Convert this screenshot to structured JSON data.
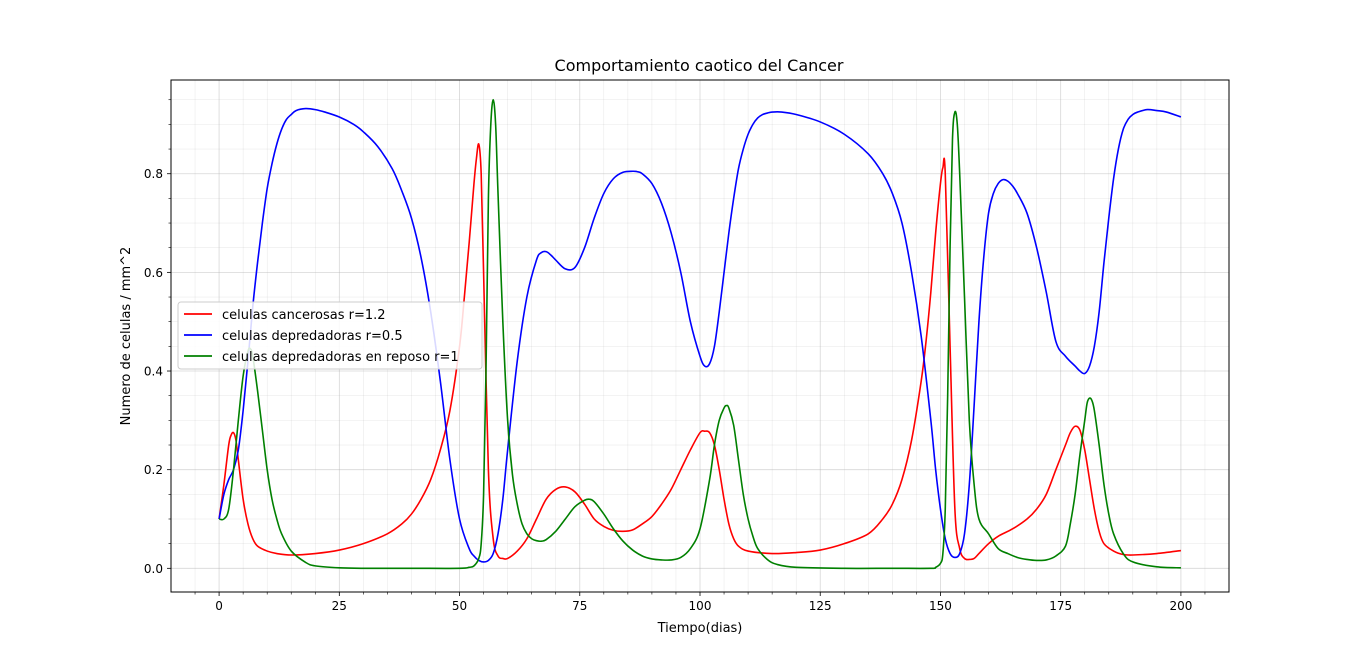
{
  "chart_data": {
    "type": "line",
    "title": "Comportamiento caotico del Cancer",
    "xlabel": "Tiempo(dias)",
    "ylabel": "Numero de celulas / mm^2",
    "xlim": [
      -10,
      210
    ],
    "ylim": [
      -0.048,
      0.99
    ],
    "x_ticks": [
      0,
      25,
      50,
      75,
      100,
      125,
      150,
      175,
      200
    ],
    "x_tick_labels": [
      "0",
      "25",
      "50",
      "75",
      "100",
      "125",
      "150",
      "175",
      "200"
    ],
    "y_ticks": [
      0.0,
      0.2,
      0.4,
      0.6,
      0.8
    ],
    "y_tick_labels": [
      "0.0",
      "0.2",
      "0.4",
      "0.6",
      "0.8"
    ],
    "grid": true,
    "legend_position": "center-left",
    "series": [
      {
        "name": "celulas cancerosas r=1.2",
        "color": "#ff0000",
        "x": [
          0,
          1,
          2,
          2.5,
          3,
          3.5,
          4,
          5,
          6,
          7,
          8,
          10,
          12,
          15,
          20,
          25,
          30,
          35,
          38,
          40,
          42,
          44,
          46,
          48,
          50,
          51,
          52,
          53,
          53.5,
          54,
          54.5,
          55,
          56,
          57,
          58,
          59,
          60,
          62,
          64,
          66,
          68,
          70,
          72,
          74,
          76,
          78,
          80,
          82,
          84,
          86,
          88,
          90,
          92,
          94,
          96,
          98,
          100,
          101,
          102,
          103,
          104,
          105,
          106,
          107,
          108,
          110,
          115,
          120,
          125,
          130,
          135,
          138,
          140,
          142,
          144,
          146,
          147,
          148,
          149,
          150,
          150.5,
          151,
          152,
          153,
          154,
          155,
          156,
          157,
          158,
          160,
          162,
          165,
          168,
          170,
          172,
          174,
          176,
          177,
          178,
          179,
          180,
          181,
          182,
          183,
          184,
          186,
          188,
          190,
          195,
          200
        ],
        "y": [
          0.1,
          0.17,
          0.25,
          0.27,
          0.275,
          0.26,
          0.22,
          0.14,
          0.09,
          0.06,
          0.045,
          0.035,
          0.03,
          0.027,
          0.03,
          0.037,
          0.05,
          0.07,
          0.09,
          0.11,
          0.14,
          0.18,
          0.24,
          0.32,
          0.45,
          0.55,
          0.66,
          0.78,
          0.83,
          0.86,
          0.8,
          0.6,
          0.2,
          0.06,
          0.025,
          0.02,
          0.02,
          0.035,
          0.06,
          0.1,
          0.14,
          0.16,
          0.165,
          0.155,
          0.13,
          0.1,
          0.085,
          0.077,
          0.075,
          0.078,
          0.09,
          0.105,
          0.13,
          0.16,
          0.2,
          0.24,
          0.275,
          0.278,
          0.275,
          0.25,
          0.2,
          0.14,
          0.09,
          0.06,
          0.045,
          0.035,
          0.03,
          0.032,
          0.037,
          0.05,
          0.07,
          0.1,
          0.13,
          0.18,
          0.26,
          0.38,
          0.46,
          0.56,
          0.68,
          0.78,
          0.812,
          0.8,
          0.45,
          0.12,
          0.04,
          0.02,
          0.018,
          0.02,
          0.03,
          0.05,
          0.065,
          0.08,
          0.1,
          0.12,
          0.15,
          0.2,
          0.25,
          0.275,
          0.288,
          0.28,
          0.24,
          0.18,
          0.12,
          0.075,
          0.05,
          0.035,
          0.028,
          0.027,
          0.03,
          0.036
        ]
      },
      {
        "name": "celulas depredadoras r=0.5",
        "color": "#0000ff",
        "x": [
          0,
          1,
          2,
          3,
          4,
          5,
          6,
          7,
          8,
          9,
          10,
          11,
          12,
          13,
          14,
          15,
          16,
          18,
          20,
          22,
          25,
          28,
          30,
          33,
          36,
          38,
          40,
          42,
          44,
          46,
          48,
          50,
          52,
          53,
          54,
          55,
          56,
          57,
          58,
          59,
          60,
          62,
          64,
          66,
          67,
          68,
          69,
          70,
          72,
          74,
          76,
          78,
          80,
          82,
          84,
          86,
          87,
          88,
          90,
          92,
          94,
          96,
          98,
          100,
          101,
          102,
          103,
          104,
          105,
          106,
          107,
          108,
          109,
          110,
          111,
          112,
          113,
          114,
          115,
          117,
          120,
          125,
          130,
          135,
          138,
          140,
          142,
          144,
          146,
          148,
          149,
          150,
          151,
          152,
          153,
          154,
          155,
          156,
          157,
          158,
          159,
          160,
          161,
          162,
          163,
          164,
          165,
          166,
          168,
          170,
          172,
          174,
          176,
          178,
          179,
          180,
          181,
          182,
          183,
          184,
          185,
          186,
          187,
          188,
          189,
          190,
          191,
          193,
          195,
          197,
          200
        ],
        "y": [
          0.1,
          0.15,
          0.18,
          0.2,
          0.24,
          0.32,
          0.42,
          0.53,
          0.62,
          0.7,
          0.77,
          0.82,
          0.86,
          0.89,
          0.91,
          0.92,
          0.928,
          0.932,
          0.93,
          0.925,
          0.915,
          0.9,
          0.885,
          0.855,
          0.81,
          0.765,
          0.71,
          0.63,
          0.52,
          0.38,
          0.22,
          0.1,
          0.04,
          0.025,
          0.016,
          0.013,
          0.016,
          0.03,
          0.07,
          0.14,
          0.24,
          0.42,
          0.55,
          0.625,
          0.64,
          0.642,
          0.635,
          0.625,
          0.607,
          0.61,
          0.65,
          0.71,
          0.76,
          0.79,
          0.803,
          0.805,
          0.804,
          0.8,
          0.78,
          0.74,
          0.68,
          0.6,
          0.5,
          0.43,
          0.41,
          0.415,
          0.45,
          0.52,
          0.6,
          0.68,
          0.75,
          0.81,
          0.85,
          0.88,
          0.9,
          0.913,
          0.92,
          0.923,
          0.925,
          0.925,
          0.92,
          0.905,
          0.88,
          0.84,
          0.8,
          0.76,
          0.7,
          0.6,
          0.47,
          0.3,
          0.2,
          0.12,
          0.06,
          0.03,
          0.022,
          0.03,
          0.07,
          0.17,
          0.33,
          0.5,
          0.63,
          0.72,
          0.76,
          0.78,
          0.788,
          0.785,
          0.775,
          0.76,
          0.72,
          0.65,
          0.56,
          0.46,
          0.43,
          0.41,
          0.4,
          0.395,
          0.41,
          0.45,
          0.52,
          0.62,
          0.71,
          0.79,
          0.85,
          0.89,
          0.91,
          0.92,
          0.925,
          0.93,
          0.928,
          0.925,
          0.915
        ]
      },
      {
        "name": "celulas depredadoras en reposo r=1",
        "color": "#008000",
        "x": [
          0,
          1,
          2,
          3,
          4,
          5,
          6,
          6.5,
          7,
          8,
          9,
          10,
          11,
          12,
          13,
          15,
          18,
          20,
          25,
          30,
          40,
          50,
          52,
          53,
          54,
          54.5,
          55,
          55.5,
          56,
          56.5,
          57,
          57.5,
          58,
          59,
          60,
          61,
          62,
          63,
          64,
          65,
          66,
          67,
          68,
          70,
          72,
          74,
          76,
          77,
          78,
          80,
          82,
          84,
          86,
          88,
          90,
          92,
          94,
          96,
          98,
          100,
          102,
          103,
          104,
          105,
          105.5,
          106,
          107,
          108,
          109,
          110,
          111,
          112,
          114,
          116,
          120,
          130,
          140,
          148,
          149,
          150,
          150.5,
          151,
          151.5,
          152,
          152.5,
          153,
          153.5,
          154,
          155,
          156,
          157,
          158,
          160,
          162,
          164,
          166,
          168,
          170,
          172,
          174,
          176,
          177,
          178,
          179,
          180,
          180.5,
          181,
          181.5,
          182,
          183,
          184,
          185,
          186,
          188,
          190,
          195,
          200
        ],
        "y": [
          0.1,
          0.1,
          0.12,
          0.2,
          0.3,
          0.39,
          0.44,
          0.445,
          0.43,
          0.36,
          0.28,
          0.2,
          0.14,
          0.1,
          0.07,
          0.035,
          0.012,
          0.005,
          0.001,
          0.0,
          0.0,
          0.0,
          0.002,
          0.005,
          0.02,
          0.05,
          0.15,
          0.4,
          0.75,
          0.9,
          0.95,
          0.9,
          0.76,
          0.5,
          0.3,
          0.19,
          0.13,
          0.09,
          0.07,
          0.06,
          0.056,
          0.055,
          0.058,
          0.075,
          0.1,
          0.125,
          0.138,
          0.14,
          0.135,
          0.11,
          0.08,
          0.055,
          0.037,
          0.025,
          0.019,
          0.017,
          0.017,
          0.022,
          0.04,
          0.08,
          0.18,
          0.25,
          0.3,
          0.325,
          0.33,
          0.325,
          0.29,
          0.22,
          0.15,
          0.1,
          0.065,
          0.04,
          0.018,
          0.008,
          0.002,
          0.0,
          0.0,
          0.0,
          0.002,
          0.01,
          0.03,
          0.12,
          0.35,
          0.65,
          0.87,
          0.925,
          0.9,
          0.8,
          0.55,
          0.3,
          0.17,
          0.1,
          0.07,
          0.04,
          0.03,
          0.022,
          0.018,
          0.016,
          0.017,
          0.025,
          0.045,
          0.09,
          0.15,
          0.23,
          0.3,
          0.335,
          0.345,
          0.34,
          0.32,
          0.25,
          0.17,
          0.11,
          0.07,
          0.03,
          0.013,
          0.003,
          0.001
        ]
      }
    ]
  }
}
